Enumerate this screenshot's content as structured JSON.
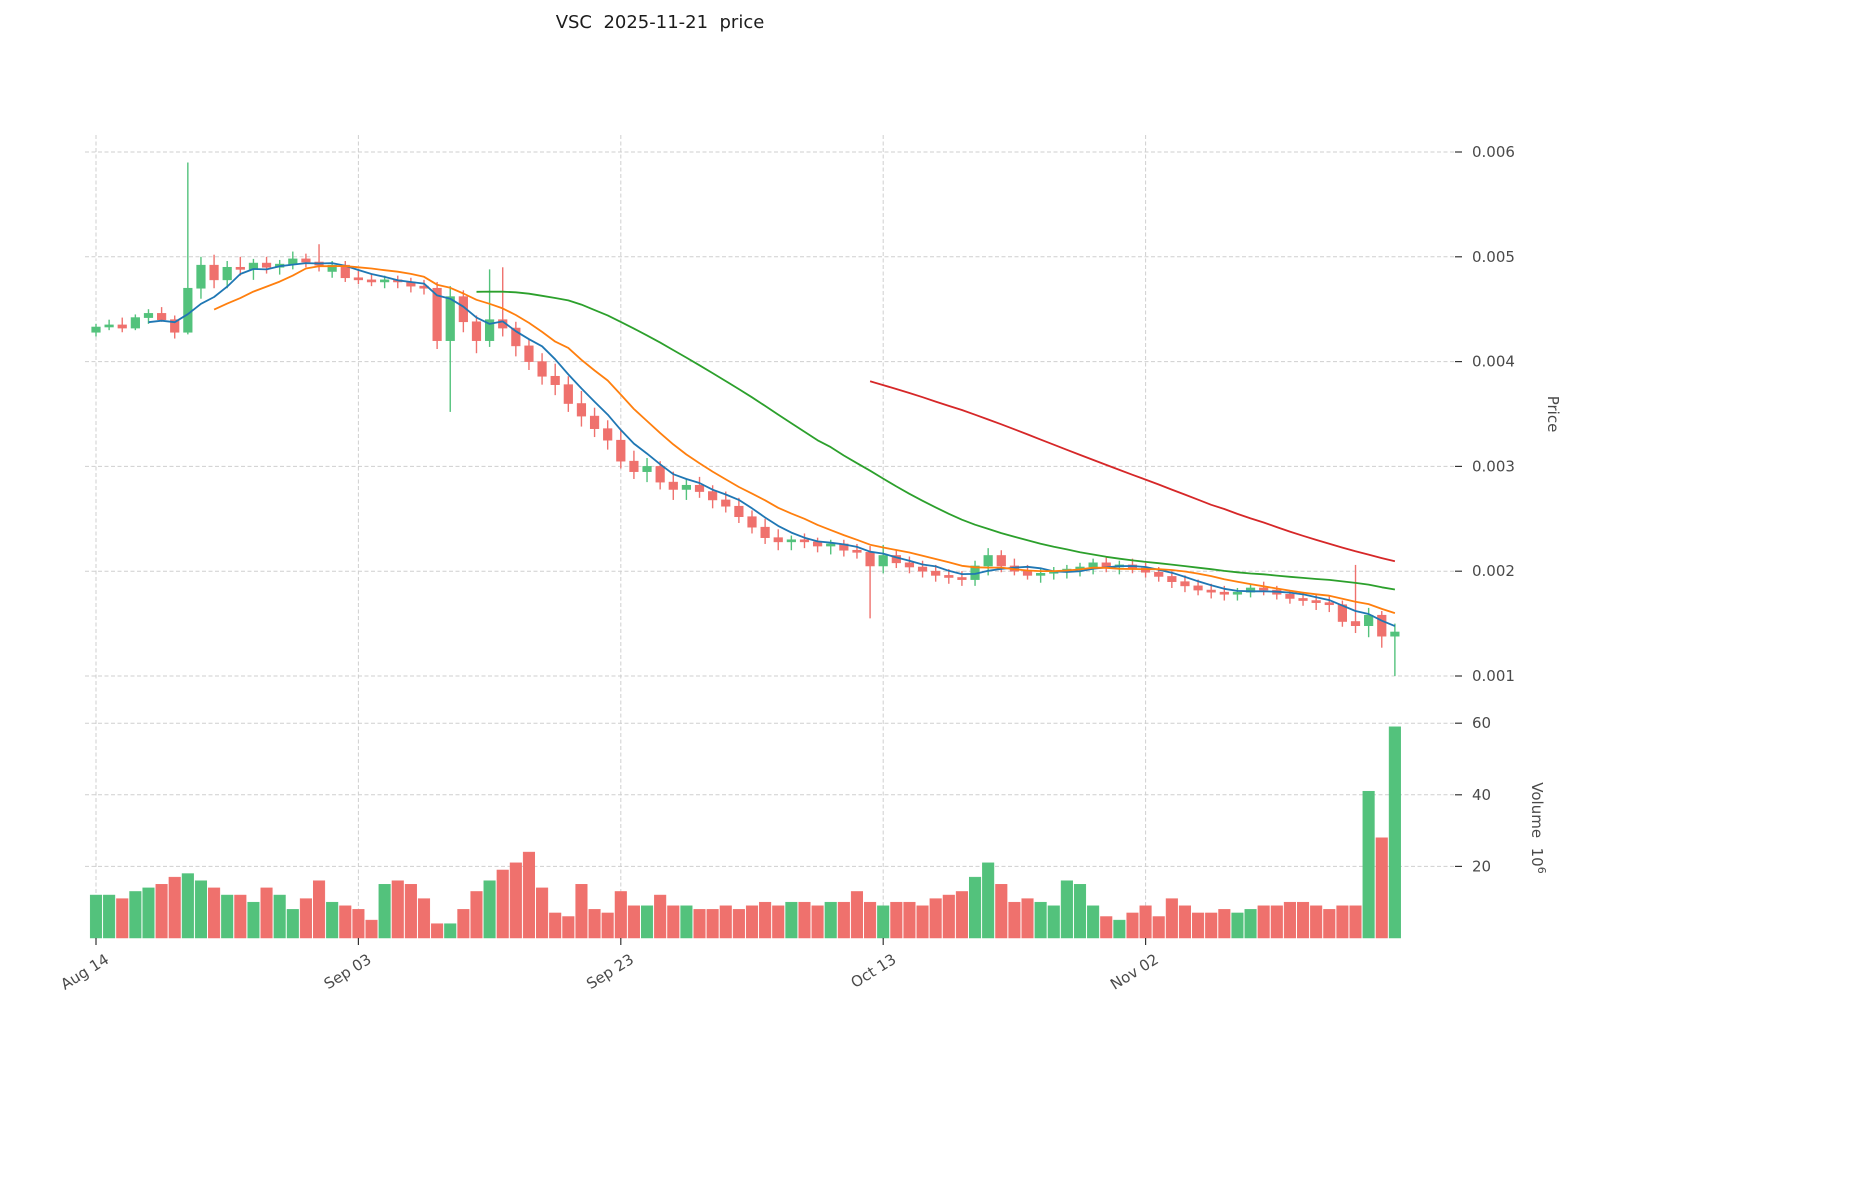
{
  "chart_data": {
    "type": "candlestick",
    "title": "VSC  2025-11-21  price",
    "x_ticks": [
      {
        "index": 0,
        "label": "Aug 14"
      },
      {
        "index": 20,
        "label": "Sep 03"
      },
      {
        "index": 40,
        "label": "Sep 23"
      },
      {
        "index": 60,
        "label": "Oct 13"
      },
      {
        "index": 80,
        "label": "Nov 02"
      }
    ],
    "price_axis": {
      "label": "Price",
      "ticks": [
        0.001,
        0.002,
        0.003,
        0.004,
        0.005,
        0.006
      ],
      "range": [
        0.00085,
        0.00615
      ]
    },
    "volume_axis": {
      "label": "Volume",
      "unit_base": "10",
      "unit_exp": "6",
      "ticks": [
        20,
        40,
        60
      ],
      "range": [
        0,
        62
      ]
    },
    "grid": true,
    "legend_position": "none",
    "colors": {
      "up": "#53c27c",
      "down": "#ef716d",
      "grid": "#cfcfcf",
      "tick_text": "#4a4a4a",
      "title_text": "#1c1c1c",
      "ma_short": "#1f77b4",
      "ma_mid": "#ff7f0e",
      "ma_long": "#2ca02c",
      "ma_longest": "#d62728"
    },
    "moving_averages": [
      {
        "window": 5,
        "color": "#1f77b4"
      },
      {
        "window": 10,
        "color": "#ff7f0e"
      },
      {
        "window": 30,
        "color": "#2ca02c"
      },
      {
        "window": 60,
        "color": "#d62728"
      }
    ],
    "ohlc": [
      [
        0.00428,
        0.00436,
        0.00424,
        0.00433
      ],
      [
        0.00433,
        0.0044,
        0.0043,
        0.00435
      ],
      [
        0.00435,
        0.00442,
        0.00428,
        0.00432
      ],
      [
        0.00432,
        0.00445,
        0.0043,
        0.00442
      ],
      [
        0.00442,
        0.0045,
        0.00436,
        0.00446
      ],
      [
        0.00446,
        0.00452,
        0.00438,
        0.0044
      ],
      [
        0.0044,
        0.00444,
        0.00422,
        0.00428
      ],
      [
        0.00428,
        0.0059,
        0.00426,
        0.0047
      ],
      [
        0.0047,
        0.005,
        0.0046,
        0.00492
      ],
      [
        0.00492,
        0.00502,
        0.0047,
        0.00478
      ],
      [
        0.00478,
        0.00496,
        0.0047,
        0.0049
      ],
      [
        0.0049,
        0.005,
        0.00482,
        0.00488
      ],
      [
        0.00488,
        0.00498,
        0.00478,
        0.00494
      ],
      [
        0.00494,
        0.005,
        0.00484,
        0.0049
      ],
      [
        0.0049,
        0.00497,
        0.00483,
        0.00493
      ],
      [
        0.00493,
        0.00505,
        0.00488,
        0.00498
      ],
      [
        0.00498,
        0.00503,
        0.0049,
        0.00495
      ],
      [
        0.00495,
        0.00512,
        0.00486,
        0.00492
      ],
      [
        0.00486,
        0.00496,
        0.0048,
        0.00492
      ],
      [
        0.00492,
        0.00496,
        0.00476,
        0.0048
      ],
      [
        0.0048,
        0.00488,
        0.00474,
        0.00478
      ],
      [
        0.00478,
        0.00484,
        0.00472,
        0.00476
      ],
      [
        0.00476,
        0.00482,
        0.0047,
        0.00478
      ],
      [
        0.00478,
        0.00482,
        0.0047,
        0.00476
      ],
      [
        0.00476,
        0.0048,
        0.00466,
        0.00472
      ],
      [
        0.00472,
        0.00478,
        0.00464,
        0.0047
      ],
      [
        0.0047,
        0.00476,
        0.00412,
        0.0042
      ],
      [
        0.0042,
        0.00472,
        0.00352,
        0.00462
      ],
      [
        0.00462,
        0.00468,
        0.00428,
        0.00438
      ],
      [
        0.00438,
        0.00444,
        0.00408,
        0.0042
      ],
      [
        0.0042,
        0.00488,
        0.00414,
        0.0044
      ],
      [
        0.0044,
        0.0049,
        0.00424,
        0.00432
      ],
      [
        0.00432,
        0.00438,
        0.00405,
        0.00415
      ],
      [
        0.00415,
        0.00422,
        0.00392,
        0.004
      ],
      [
        0.004,
        0.00408,
        0.00378,
        0.00386
      ],
      [
        0.00386,
        0.00398,
        0.00368,
        0.00378
      ],
      [
        0.00378,
        0.00386,
        0.00352,
        0.0036
      ],
      [
        0.0036,
        0.00372,
        0.00338,
        0.00348
      ],
      [
        0.00348,
        0.00356,
        0.00328,
        0.00336
      ],
      [
        0.00336,
        0.00344,
        0.00316,
        0.00325
      ],
      [
        0.00325,
        0.00335,
        0.00298,
        0.00305
      ],
      [
        0.00305,
        0.00315,
        0.00288,
        0.00295
      ],
      [
        0.00295,
        0.00308,
        0.00285,
        0.003
      ],
      [
        0.003,
        0.00305,
        0.00278,
        0.00285
      ],
      [
        0.00285,
        0.00295,
        0.00268,
        0.00278
      ],
      [
        0.00278,
        0.00288,
        0.00268,
        0.00282
      ],
      [
        0.00282,
        0.0029,
        0.0027,
        0.00276
      ],
      [
        0.00276,
        0.00282,
        0.0026,
        0.00268
      ],
      [
        0.00268,
        0.00276,
        0.00256,
        0.00262
      ],
      [
        0.00262,
        0.0027,
        0.00246,
        0.00252
      ],
      [
        0.00252,
        0.00258,
        0.00236,
        0.00242
      ],
      [
        0.00242,
        0.0025,
        0.00226,
        0.00232
      ],
      [
        0.00232,
        0.0024,
        0.0022,
        0.00228
      ],
      [
        0.00228,
        0.00234,
        0.0022,
        0.0023
      ],
      [
        0.0023,
        0.00236,
        0.00222,
        0.00228
      ],
      [
        0.00228,
        0.00232,
        0.00218,
        0.00224
      ],
      [
        0.00224,
        0.0023,
        0.00216,
        0.00226
      ],
      [
        0.00226,
        0.0023,
        0.00214,
        0.0022
      ],
      [
        0.0022,
        0.00226,
        0.00212,
        0.00218
      ],
      [
        0.00218,
        0.00224,
        0.00155,
        0.00205
      ],
      [
        0.00205,
        0.00225,
        0.00198,
        0.00215
      ],
      [
        0.00215,
        0.0022,
        0.00203,
        0.00208
      ],
      [
        0.00208,
        0.00214,
        0.00198,
        0.00204
      ],
      [
        0.00204,
        0.0021,
        0.00194,
        0.002
      ],
      [
        0.002,
        0.00206,
        0.0019,
        0.00196
      ],
      [
        0.00196,
        0.00202,
        0.00188,
        0.00194
      ],
      [
        0.00194,
        0.002,
        0.00186,
        0.00192
      ],
      [
        0.00192,
        0.0021,
        0.00186,
        0.00205
      ],
      [
        0.00205,
        0.00222,
        0.00196,
        0.00215
      ],
      [
        0.00215,
        0.0022,
        0.00199,
        0.00205
      ],
      [
        0.00205,
        0.00212,
        0.00196,
        0.002
      ],
      [
        0.002,
        0.00206,
        0.00192,
        0.00196
      ],
      [
        0.00196,
        0.00202,
        0.00189,
        0.00198
      ],
      [
        0.00198,
        0.00204,
        0.00192,
        0.002
      ],
      [
        0.002,
        0.00206,
        0.00193,
        0.00202
      ],
      [
        0.00202,
        0.00208,
        0.00195,
        0.00204
      ],
      [
        0.00204,
        0.00212,
        0.00197,
        0.00208
      ],
      [
        0.00208,
        0.00214,
        0.00199,
        0.00204
      ],
      [
        0.00204,
        0.0021,
        0.00197,
        0.00206
      ],
      [
        0.00206,
        0.00212,
        0.00198,
        0.00203
      ],
      [
        0.00203,
        0.00208,
        0.00194,
        0.00199
      ],
      [
        0.00199,
        0.00204,
        0.0019,
        0.00195
      ],
      [
        0.00195,
        0.002,
        0.00184,
        0.0019
      ],
      [
        0.0019,
        0.00196,
        0.0018,
        0.00186
      ],
      [
        0.00186,
        0.00192,
        0.00177,
        0.00182
      ],
      [
        0.00182,
        0.00188,
        0.00174,
        0.0018
      ],
      [
        0.0018,
        0.00186,
        0.00172,
        0.00178
      ],
      [
        0.00178,
        0.00184,
        0.00172,
        0.0018
      ],
      [
        0.0018,
        0.00188,
        0.00175,
        0.00184
      ],
      [
        0.00184,
        0.0019,
        0.00177,
        0.00182
      ],
      [
        0.00182,
        0.00186,
        0.00173,
        0.00178
      ],
      [
        0.00178,
        0.00182,
        0.00169,
        0.00174
      ],
      [
        0.00174,
        0.0018,
        0.00167,
        0.00172
      ],
      [
        0.00172,
        0.00178,
        0.00163,
        0.0017
      ],
      [
        0.0017,
        0.00176,
        0.00161,
        0.00168
      ],
      [
        0.00168,
        0.00172,
        0.00147,
        0.00152
      ],
      [
        0.00152,
        0.00206,
        0.00141,
        0.00148
      ],
      [
        0.00148,
        0.00165,
        0.00137,
        0.00158
      ],
      [
        0.00158,
        0.00162,
        0.00127,
        0.00138
      ],
      [
        0.00138,
        0.0015,
        0.001,
        0.00142
      ]
    ],
    "volume_millions": [
      12,
      12,
      11,
      13,
      14,
      15,
      17,
      18,
      16,
      14,
      12,
      12,
      10,
      14,
      12,
      8,
      11,
      16,
      10,
      9,
      8,
      5,
      15,
      16,
      15,
      11,
      4,
      4,
      8,
      13,
      16,
      19,
      21,
      24,
      14,
      7,
      6,
      15,
      8,
      7,
      13,
      9,
      9,
      12,
      9,
      9,
      8,
      8,
      9,
      8,
      9,
      10,
      9,
      10,
      10,
      9,
      10,
      10,
      13,
      10,
      9,
      10,
      10,
      9,
      11,
      12,
      13,
      17,
      21,
      15,
      10,
      11,
      10,
      9,
      16,
      15,
      9,
      6,
      5,
      7,
      9,
      6,
      11,
      9,
      7,
      7,
      8,
      7,
      8,
      9,
      9,
      10,
      10,
      9,
      8,
      9,
      9,
      41,
      28,
      59
    ]
  }
}
